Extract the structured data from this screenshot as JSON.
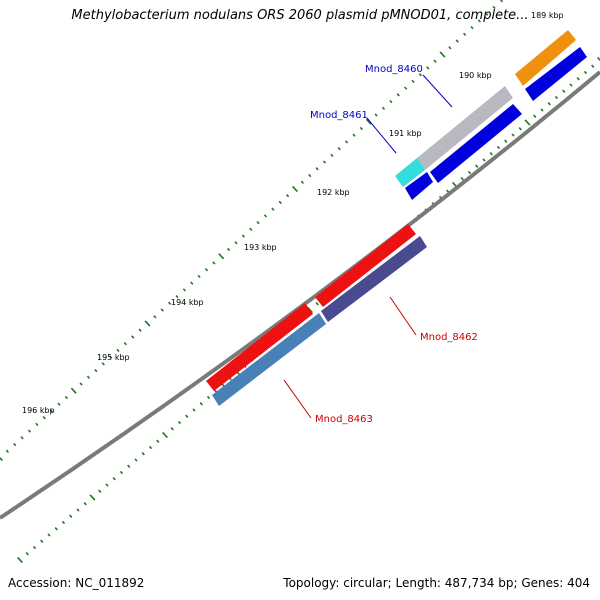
{
  "header": {
    "title": "Methylobacterium nodulans ORS 2060 plasmid pMNOD01, complete..."
  },
  "footer": {
    "accession": "Accession: NC_011892",
    "summary": "Topology: circular; Length: 487,734 bp; Genes: 404"
  },
  "colors": {
    "backbone": "#808080",
    "tick": "#1e7a1e",
    "orange": "#f0900f",
    "blue": "#0000dd",
    "cyan": "#33dddd",
    "grey": "#b8b8c0",
    "red": "#ee1111",
    "navy": "#4a4a90",
    "steelblue": "#4a80b8",
    "label_blue": "#0000cc",
    "label_red": "#cc0000"
  },
  "ticks": [
    "189 kbp",
    "190 kbp",
    "191 kbp",
    "192 kbp",
    "193 kbp",
    "194 kbp",
    "195 kbp",
    "196 kbp"
  ],
  "genes": [
    {
      "name": "Mnod_8460",
      "color": "label_blue"
    },
    {
      "name": "Mnod_8461",
      "color": "label_blue"
    },
    {
      "name": "Mnod_8462",
      "color": "label_red"
    },
    {
      "name": "Mnod_8463",
      "color": "label_red"
    }
  ]
}
